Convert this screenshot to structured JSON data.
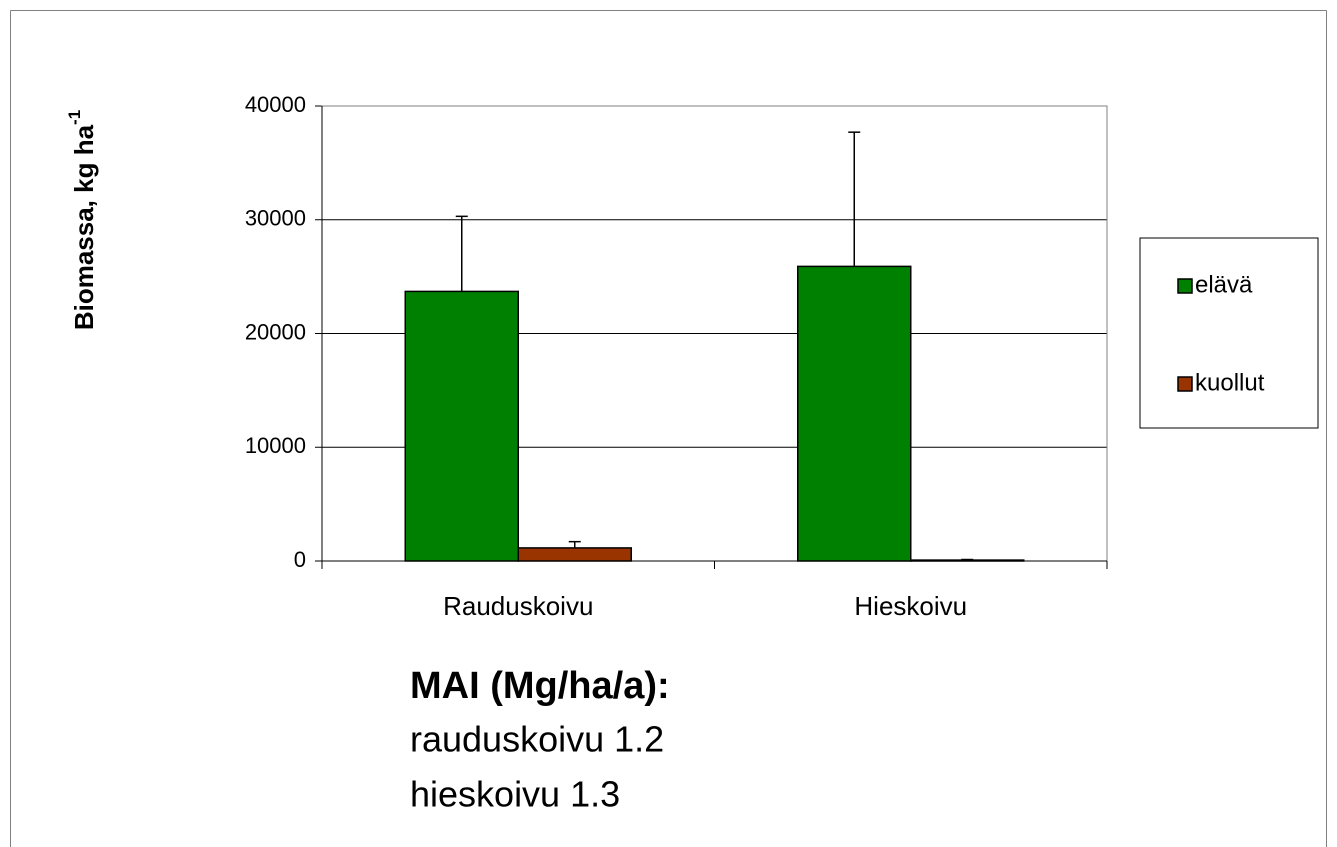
{
  "chart_data": {
    "type": "bar",
    "y_label": {
      "text": "Biomassa, kg ha",
      "superscript": "-1"
    },
    "categories": [
      "Rauduskoivu",
      "Hieskoivu"
    ],
    "series": [
      {
        "name": "elävä",
        "color": "#008000",
        "values": [
          23700,
          25900
        ],
        "errors": [
          6600,
          11800
        ]
      },
      {
        "name": "kuollut",
        "color": "#993300",
        "values": [
          1150,
          80
        ],
        "errors": [
          550,
          50
        ]
      }
    ],
    "ylim": [
      0,
      40000
    ],
    "yticks": [
      0,
      10000,
      20000,
      30000,
      40000
    ],
    "grid": true,
    "legend": "right",
    "annotations": [
      "MAI (Mg/ha/a):",
      "rauduskoivu 1.2",
      "hieskoivu 1.3"
    ]
  }
}
